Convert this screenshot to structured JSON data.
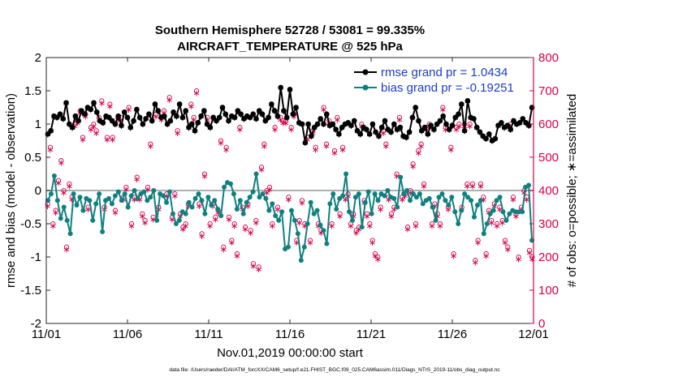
{
  "chart_data": {
    "type": "line",
    "title_line1": "Southern Hemisphere 52728 / 53081 = 99.335%",
    "title_line2": "AIRCRAFT_TEMPERATURE @ 525 hPa",
    "xlabel": "Nov.01,2019 00:00:00 start",
    "ylabel_left": "rmse and bias (model - observation)",
    "ylabel_right": "# of obs: o=possible; ∗=assimilated",
    "footnote": "data file: /Users/raeder/DAI/ATM_forcXX/CAM6_setup/f.e21.FHIST_BGC.f09_025.CAM6assim.011/Diags_NTrS_2019-11/obs_diag_output.nc",
    "x_tick_labels": [
      "11/01",
      "11/06",
      "11/11",
      "11/16",
      "11/21",
      "11/26",
      "12/01"
    ],
    "x_tick_days": [
      0,
      5,
      10,
      15,
      20,
      25,
      30
    ],
    "xlim": [
      0,
      30
    ],
    "ylim_left": [
      -2,
      2
    ],
    "ylim_right": [
      0,
      800
    ],
    "left_ticks": [
      -2,
      -1.5,
      -1,
      -0.5,
      0,
      0.5,
      1,
      1.5,
      2
    ],
    "left_tick_labels": [
      "-2",
      "-1.5",
      "-1",
      "-0.5",
      "0",
      "0.5",
      "1",
      "1.5",
      "2"
    ],
    "right_ticks": [
      0,
      100,
      200,
      300,
      400,
      500,
      600,
      700,
      800
    ],
    "right_tick_labels": [
      "0",
      "100",
      "200",
      "300",
      "400",
      "500",
      "600",
      "700",
      "800"
    ],
    "colors": {
      "rmse": "#000000",
      "bias": "#0f8080",
      "obs": "#d6004a",
      "zero_line": "#b0b0b0",
      "legend_text": "#1a3ec8"
    },
    "series": [
      {
        "name": "rmse grand pr = 1.0434",
        "axis": "left",
        "values": [
          0.85,
          0.9,
          1.12,
          1.1,
          1.15,
          1.08,
          1.32,
          1.0,
          0.95,
          1.12,
          1.05,
          1.2,
          1.15,
          1.25,
          1.22,
          1.32,
          1.18,
          1.05,
          1.02,
          1.12,
          1.1,
          1.05,
          1.0,
          1.12,
          0.98,
          1.18,
          1.1,
          0.95,
          1.05,
          1.22,
          1.1,
          1.0,
          1.08,
          1.15,
          1.05,
          1.3,
          1.2,
          1.1,
          1.12,
          1.0,
          1.05,
          1.18,
          1.12,
          1.3,
          1.1,
          1.2,
          0.95,
          1.0,
          0.9,
          1.02,
          1.12,
          1.2,
          1.0,
          0.95,
          1.1,
          1.05,
          1.1,
          1.25,
          1.15,
          1.05,
          1.12,
          1.1,
          1.2,
          1.15,
          1.08,
          1.12,
          1.1,
          1.15,
          1.08,
          1.2,
          1.15,
          1.05,
          1.1,
          1.3,
          1.2,
          1.12,
          1.55,
          1.2,
          1.1,
          1.52,
          1.15,
          1.25,
          1.02,
          1.0,
          0.72,
          1.0,
          0.82,
          0.95,
          1.0,
          1.08,
          1.0,
          1.15,
          0.98,
          1.0,
          0.92,
          0.85,
          0.95,
          1.0,
          1.02,
          0.98,
          1.05,
          0.9,
          0.85,
          0.95,
          0.92,
          0.85,
          1.0,
          0.88,
          0.82,
          0.95,
          1.05,
          0.92,
          0.88,
          1.0,
          0.92,
          0.95,
          0.82,
          0.8,
          0.88,
          1.1,
          1.25,
          1.05,
          0.9,
          0.95,
          0.85,
          0.98,
          0.92,
          1.0,
          1.05,
          1.12,
          1.0,
          0.92,
          0.98,
          1.1,
          1.15,
          1.3,
          0.9,
          1.35,
          1.1,
          1.08,
          0.95,
          0.88,
          0.82,
          0.78,
          0.85,
          0.75,
          0.78,
          0.98,
          1.02,
          0.95,
          0.98,
          0.92,
          1.05,
          1.0,
          1.02,
          1.08,
          1.02,
          0.98,
          1.25
        ]
      },
      {
        "name": "bias grand pr = -0.19251",
        "axis": "left",
        "values": [
          -0.15,
          -0.05,
          0.22,
          -0.15,
          -0.42,
          -0.25,
          -0.45,
          -0.65,
          -0.05,
          -0.22,
          -0.1,
          -0.3,
          -0.12,
          -0.15,
          -0.45,
          -0.2,
          -0.05,
          -0.62,
          -0.15,
          -0.12,
          -0.2,
          -0.08,
          -0.02,
          -0.15,
          -0.05,
          -0.25,
          -0.08,
          0.0,
          -0.12,
          -0.05,
          -0.02,
          -0.15,
          -0.1,
          0.0,
          -0.45,
          -0.05,
          -0.08,
          -0.18,
          -0.02,
          -0.35,
          -0.5,
          -0.45,
          -0.32,
          -0.35,
          -0.18,
          -0.25,
          -0.12,
          -0.05,
          -0.15,
          -0.35,
          -0.1,
          -0.22,
          -0.15,
          -0.28,
          -0.38,
          0.05,
          0.12,
          0.1,
          -0.05,
          -0.28,
          -0.15,
          -0.35,
          -0.18,
          -0.1,
          -0.02,
          0.25,
          -0.1,
          -0.05,
          -0.12,
          -0.3,
          -0.2,
          -0.38,
          -0.45,
          -0.32,
          -0.88,
          -0.85,
          -0.3,
          -0.45,
          -0.65,
          -1.05,
          -0.85,
          -0.5,
          -0.18,
          -0.35,
          -0.3,
          -0.52,
          -0.6,
          -0.8,
          -0.2,
          -0.05,
          -0.28,
          -0.12,
          -0.08,
          0.25,
          -0.32,
          -0.45,
          -0.1,
          -0.05,
          -0.55,
          -0.18,
          -0.02,
          -0.35,
          -0.05,
          -0.15,
          -0.05,
          -0.08,
          0.0,
          -0.1,
          -0.12,
          -0.25,
          0.2,
          -0.05,
          0.0,
          -0.15,
          -0.05,
          -0.1,
          -0.05,
          -0.2,
          -0.15,
          -0.12,
          -0.25,
          -0.45,
          -0.1,
          -0.05,
          -0.15,
          -0.22,
          -0.1,
          -0.32,
          -0.5,
          -0.3,
          -0.05,
          -0.1,
          -0.15,
          -0.4,
          -0.22,
          -0.15,
          -0.65,
          -0.5,
          -0.35,
          -0.3,
          -0.15,
          -0.1,
          -0.32,
          -0.45,
          -0.35,
          -0.3,
          -0.32,
          -0.32,
          -0.32,
          0.05,
          0.08,
          -0.75
        ]
      },
      {
        "name": "obs possible",
        "axis": "right",
        "values": [
          360,
          530,
          300,
          340,
          430,
          490,
          400,
          230,
          420,
          380,
          600,
          610,
          640,
          560,
          630,
          350,
          590,
          600,
          580,
          620,
          670,
          350,
          560,
          660,
          560,
          340,
          620,
          620,
          380,
          410,
          650,
          300,
          380,
          440,
          380,
          330,
          310,
          410,
          540,
          320,
          630,
          350,
          620,
          640,
          390,
          680,
          320,
          390,
          580,
          330,
          290,
          300,
          360,
          660,
          620,
          700,
          360,
          270,
          450,
          620,
          300,
          360,
          320,
          340,
          550,
          230,
          530,
          320,
          250,
          300,
          210,
          590,
          350,
          290,
          360,
          280,
          180,
          310,
          170,
          470,
          540,
          400,
          410,
          300,
          590,
          350,
          620,
          610,
          610,
          380,
          590,
          630,
          250,
          310,
          370,
          300,
          560,
          250,
          580,
          530,
          300,
          280,
          650,
          540,
          610,
          300,
          520,
          620,
          330,
          530,
          380,
          390,
          300,
          330,
          280,
          290,
          600,
          370,
          330,
          300,
          250,
          210,
          200,
          350,
          580,
          540,
          380,
          330,
          350,
          450,
          620,
          380,
          390,
          290,
          400,
          480,
          300,
          520,
          540,
          420,
          590,
          600,
          300,
          360,
          330,
          300,
          650,
          590,
          350,
          530,
          210,
          590,
          600,
          350,
          600,
          420,
          600,
          420,
          190,
          250,
          420,
          380,
          210,
          340,
          310,
          360,
          300,
          350,
          310,
          250,
          230,
          600,
          380,
          330,
          200,
          350,
          400,
          380,
          220,
          200
        ]
      },
      {
        "name": "obs assimilated",
        "axis": "right",
        "values": [
          355,
          525,
          295,
          335,
          425,
          485,
          395,
          225,
          415,
          375,
          595,
          605,
          635,
          555,
          625,
          345,
          585,
          595,
          575,
          615,
          665,
          345,
          555,
          655,
          555,
          335,
          615,
          615,
          375,
          405,
          645,
          295,
          375,
          435,
          375,
          325,
          305,
          405,
          535,
          315,
          625,
          345,
          615,
          635,
          385,
          675,
          315,
          385,
          575,
          325,
          285,
          295,
          355,
          655,
          615,
          695,
          355,
          265,
          445,
          615,
          295,
          355,
          315,
          335,
          545,
          225,
          525,
          315,
          245,
          295,
          205,
          585,
          345,
          285,
          355,
          275,
          175,
          305,
          165,
          465,
          535,
          395,
          405,
          295,
          585,
          345,
          615,
          605,
          605,
          375,
          585,
          625,
          245,
          305,
          365,
          295,
          555,
          245,
          575,
          525,
          295,
          275,
          645,
          535,
          605,
          295,
          515,
          615,
          325,
          525,
          375,
          385,
          295,
          325,
          275,
          285,
          595,
          365,
          325,
          295,
          245,
          205,
          195,
          345,
          575,
          535,
          375,
          325,
          345,
          445,
          615,
          375,
          385,
          285,
          395,
          475,
          295,
          515,
          535,
          415,
          585,
          595,
          295,
          355,
          325,
          295,
          645,
          585,
          345,
          525,
          205,
          585,
          595,
          345,
          595,
          415,
          595,
          415,
          185,
          245,
          415,
          375,
          205,
          335,
          305,
          355,
          295,
          345,
          305,
          245,
          225,
          595,
          375,
          325,
          195,
          345,
          395,
          375,
          215,
          195
        ]
      }
    ]
  }
}
